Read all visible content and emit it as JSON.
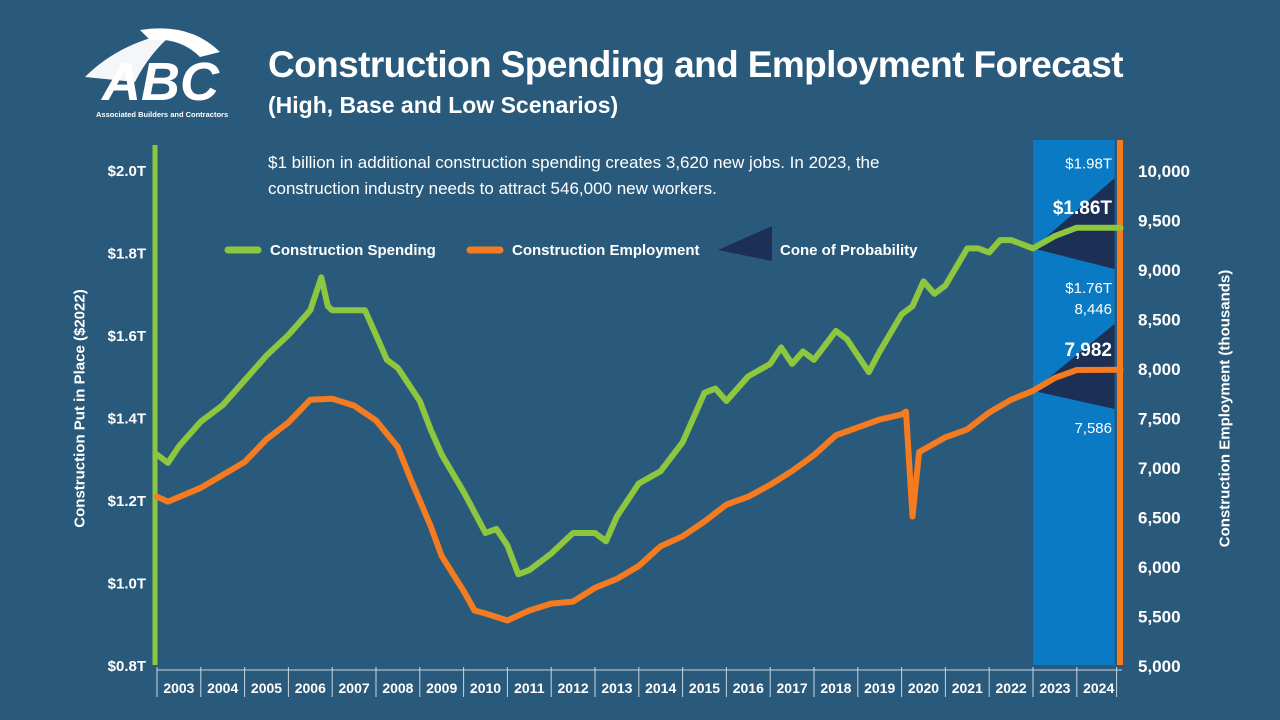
{
  "header": {
    "title": "Construction Spending and Employment Forecast",
    "subtitle": "(High, Base and Low Scenarios)",
    "note": "$1 billion in additional construction spending creates 3,620 new jobs. In 2023, the construction industry needs to attract 546,000 new workers."
  },
  "logo": {
    "text": "ABC",
    "tagline": "Associated Builders and Contractors"
  },
  "colors": {
    "background": "#2a5a7b",
    "spending": "#8dc63f",
    "employment": "#f47b20",
    "cone": "#1c2f55",
    "forecast_band": "#0a7ac4"
  },
  "chart_data": {
    "type": "line",
    "xlabel": "",
    "x_tick_labels": [
      "2003",
      "2004",
      "2005",
      "2006",
      "2007",
      "2008",
      "2009",
      "2010",
      "2011",
      "2012",
      "2013",
      "2014",
      "2015",
      "2016",
      "2017",
      "2018",
      "2019",
      "2020",
      "2021",
      "2022",
      "2023",
      "2024"
    ],
    "forecast_range": [
      2023,
      2025
    ],
    "y_left": {
      "label": "Construction Put in Place ($2022)",
      "range": [
        0.8,
        2.0
      ],
      "tick_labels": [
        "$0.8T",
        "$1.0T",
        "$1.2T",
        "$1.4T",
        "$1.6T",
        "$1.8T",
        "$2.0T"
      ],
      "ticks": [
        0.8,
        1.0,
        1.2,
        1.4,
        1.6,
        1.8,
        2.0
      ]
    },
    "y_right": {
      "label": "Construction Employment (thousands)",
      "range": [
        5000,
        10000
      ],
      "tick_labels": [
        "5,000",
        "5,500",
        "6,000",
        "6,500",
        "7,000",
        "7,500",
        "8,000",
        "8,500",
        "9,000",
        "9,500",
        "10,000"
      ],
      "ticks": [
        5000,
        5500,
        6000,
        6500,
        7000,
        7500,
        8000,
        8500,
        9000,
        9500,
        10000
      ]
    },
    "legend": {
      "position": "top-center",
      "items": [
        "Construction Spending",
        "Construction Employment",
        "Cone of Probability"
      ]
    },
    "series": [
      {
        "name": "Construction Spending",
        "axis": "left",
        "unit": "trillion $2022",
        "x": [
          2003.0,
          2003.25,
          2003.5,
          2004.0,
          2004.5,
          2005.0,
          2005.5,
          2006.0,
          2006.5,
          2006.75,
          2006.9,
          2007.0,
          2007.5,
          2007.75,
          2008.0,
          2008.25,
          2008.5,
          2009.0,
          2009.25,
          2009.5,
          2010.0,
          2010.5,
          2010.75,
          2011.0,
          2011.25,
          2011.5,
          2012.0,
          2012.5,
          2013.0,
          2013.25,
          2013.5,
          2014.0,
          2014.5,
          2015.0,
          2015.5,
          2015.75,
          2016.0,
          2016.5,
          2017.0,
          2017.25,
          2017.5,
          2017.75,
          2018.0,
          2018.5,
          2018.75,
          2019.0,
          2019.25,
          2019.5,
          2020.0,
          2020.25,
          2020.5,
          2020.75,
          2021.0,
          2021.5,
          2021.75,
          2022.0,
          2022.25,
          2022.5,
          2022.75,
          2023.0,
          2023.5,
          2024.0,
          2025.0
        ],
        "y": [
          1.31,
          1.29,
          1.33,
          1.39,
          1.43,
          1.49,
          1.55,
          1.6,
          1.66,
          1.74,
          1.67,
          1.66,
          1.66,
          1.66,
          1.6,
          1.54,
          1.52,
          1.44,
          1.37,
          1.31,
          1.22,
          1.12,
          1.13,
          1.09,
          1.02,
          1.03,
          1.07,
          1.12,
          1.12,
          1.1,
          1.16,
          1.24,
          1.27,
          1.34,
          1.46,
          1.47,
          1.44,
          1.5,
          1.53,
          1.57,
          1.53,
          1.56,
          1.54,
          1.61,
          1.59,
          1.55,
          1.51,
          1.56,
          1.65,
          1.67,
          1.73,
          1.7,
          1.72,
          1.81,
          1.81,
          1.8,
          1.83,
          1.83,
          1.82,
          1.81,
          1.84,
          1.86,
          1.86
        ]
      },
      {
        "name": "Construction Employment",
        "axis": "right",
        "unit": "thousands",
        "x": [
          2003.0,
          2003.25,
          2004.0,
          2005.0,
          2005.5,
          2006.0,
          2006.5,
          2007.0,
          2007.5,
          2008.0,
          2008.5,
          2008.8,
          2009.25,
          2009.5,
          2010.0,
          2010.25,
          2010.5,
          2011.0,
          2011.5,
          2012.0,
          2012.5,
          2013.0,
          2013.5,
          2014.0,
          2014.5,
          2015.0,
          2015.5,
          2016.0,
          2016.5,
          2017.0,
          2017.5,
          2018.0,
          2018.5,
          2019.0,
          2019.5,
          2020.0,
          2020.1,
          2020.25,
          2020.4,
          2021.0,
          2021.5,
          2022.0,
          2022.5,
          2023.0,
          2023.5,
          2024.0,
          2025.0
        ],
        "y": [
          6700,
          6650,
          6790,
          7050,
          7280,
          7450,
          7680,
          7690,
          7620,
          7470,
          7200,
          6870,
          6400,
          6100,
          5750,
          5550,
          5520,
          5450,
          5550,
          5620,
          5640,
          5780,
          5870,
          6000,
          6200,
          6300,
          6450,
          6620,
          6700,
          6820,
          6960,
          7120,
          7320,
          7400,
          7480,
          7530,
          7560,
          6500,
          7150,
          7300,
          7380,
          7550,
          7680,
          7770,
          7900,
          7980,
          7982
        ]
      }
    ],
    "cones": [
      {
        "series": "Construction Spending",
        "start": [
          2023.0,
          1.81
        ],
        "high": 1.98,
        "base": 1.86,
        "low": 1.76,
        "high_label": "$1.98T",
        "base_label": "$1.86T",
        "low_label": "$1.76T"
      },
      {
        "series": "Construction Employment",
        "start": [
          2023.0,
          7770
        ],
        "high": 8446,
        "base": 7982,
        "low": 7586,
        "high_label": "8,446",
        "base_label": "7,982",
        "low_label": "7,586"
      }
    ]
  }
}
